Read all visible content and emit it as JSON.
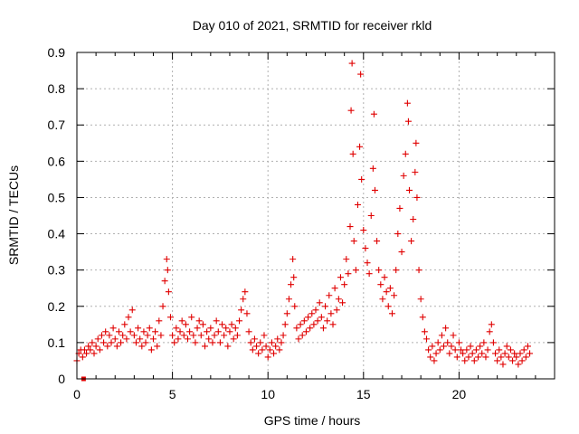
{
  "chart_data": {
    "type": "scatter",
    "title": "Day 010 of 2021, SRMTID for receiver rkld",
    "xlabel": "GPS time / hours",
    "ylabel": "SRMTID / TECUs",
    "xlim": [
      0,
      25
    ],
    "ylim": [
      0,
      0.9
    ],
    "xticks": [
      0,
      5,
      10,
      15,
      20
    ],
    "xtick_labels": [
      "0",
      "5",
      "10",
      "15",
      "20"
    ],
    "yticks": [
      0,
      0.1,
      0.2,
      0.3,
      0.4,
      0.5,
      0.6,
      0.7,
      0.8,
      0.9
    ],
    "ytick_labels": [
      "0",
      "0.1",
      "0.2",
      "0.3",
      "0.4",
      "0.5",
      "0.6",
      "0.7",
      "0.8",
      "0.9"
    ],
    "grid": true,
    "marker": "plus",
    "color": "#e00000",
    "series": [
      {
        "name": "SRMTID",
        "points": [
          [
            0.0,
            0.05
          ],
          [
            0.1,
            0.07
          ],
          [
            0.2,
            0.08
          ],
          [
            0.3,
            0.06
          ],
          [
            0.4,
            0.08
          ],
          [
            0.5,
            0.07
          ],
          [
            0.6,
            0.09
          ],
          [
            0.7,
            0.08
          ],
          [
            0.8,
            0.1
          ],
          [
            0.9,
            0.07
          ],
          [
            1.0,
            0.09
          ],
          [
            1.1,
            0.11
          ],
          [
            1.2,
            0.08
          ],
          [
            1.3,
            0.12
          ],
          [
            1.4,
            0.1
          ],
          [
            1.5,
            0.13
          ],
          [
            1.6,
            0.09
          ],
          [
            1.7,
            0.12
          ],
          [
            1.8,
            0.1
          ],
          [
            1.9,
            0.14
          ],
          [
            2.0,
            0.11
          ],
          [
            2.1,
            0.09
          ],
          [
            2.2,
            0.13
          ],
          [
            2.3,
            0.1
          ],
          [
            2.4,
            0.12
          ],
          [
            2.5,
            0.15
          ],
          [
            2.6,
            0.11
          ],
          [
            2.7,
            0.17
          ],
          [
            2.8,
            0.13
          ],
          [
            2.9,
            0.19
          ],
          [
            3.0,
            0.12
          ],
          [
            3.1,
            0.1
          ],
          [
            3.2,
            0.14
          ],
          [
            3.3,
            0.11
          ],
          [
            3.4,
            0.09
          ],
          [
            3.5,
            0.13
          ],
          [
            3.6,
            0.1
          ],
          [
            3.7,
            0.12
          ],
          [
            3.8,
            0.14
          ],
          [
            3.9,
            0.08
          ],
          [
            4.0,
            0.11
          ],
          [
            4.1,
            0.13
          ],
          [
            4.2,
            0.09
          ],
          [
            4.3,
            0.16
          ],
          [
            4.4,
            0.12
          ],
          [
            4.5,
            0.2
          ],
          [
            4.6,
            0.27
          ],
          [
            4.7,
            0.33
          ],
          [
            4.75,
            0.3
          ],
          [
            4.8,
            0.24
          ],
          [
            4.9,
            0.17
          ],
          [
            5.0,
            0.12
          ],
          [
            5.1,
            0.1
          ],
          [
            5.2,
            0.14
          ],
          [
            5.3,
            0.11
          ],
          [
            5.4,
            0.13
          ],
          [
            5.5,
            0.16
          ],
          [
            5.6,
            0.12
          ],
          [
            5.7,
            0.15
          ],
          [
            5.8,
            0.11
          ],
          [
            5.9,
            0.13
          ],
          [
            6.0,
            0.17
          ],
          [
            6.1,
            0.12
          ],
          [
            6.2,
            0.1
          ],
          [
            6.3,
            0.14
          ],
          [
            6.4,
            0.16
          ],
          [
            6.5,
            0.12
          ],
          [
            6.6,
            0.15
          ],
          [
            6.7,
            0.09
          ],
          [
            6.8,
            0.13
          ],
          [
            6.9,
            0.11
          ],
          [
            7.0,
            0.14
          ],
          [
            7.1,
            0.1
          ],
          [
            7.2,
            0.12
          ],
          [
            7.3,
            0.16
          ],
          [
            7.4,
            0.13
          ],
          [
            7.5,
            0.1
          ],
          [
            7.6,
            0.15
          ],
          [
            7.7,
            0.12
          ],
          [
            7.8,
            0.14
          ],
          [
            7.9,
            0.09
          ],
          [
            8.0,
            0.13
          ],
          [
            8.1,
            0.15
          ],
          [
            8.2,
            0.11
          ],
          [
            8.3,
            0.14
          ],
          [
            8.4,
            0.12
          ],
          [
            8.5,
            0.16
          ],
          [
            8.6,
            0.19
          ],
          [
            8.7,
            0.22
          ],
          [
            8.8,
            0.24
          ],
          [
            8.9,
            0.18
          ],
          [
            9.0,
            0.13
          ],
          [
            9.1,
            0.1
          ],
          [
            9.2,
            0.08
          ],
          [
            9.3,
            0.11
          ],
          [
            9.4,
            0.09
          ],
          [
            9.5,
            0.07
          ],
          [
            9.6,
            0.1
          ],
          [
            9.7,
            0.08
          ],
          [
            9.8,
            0.12
          ],
          [
            9.9,
            0.09
          ],
          [
            10.0,
            0.06
          ],
          [
            10.1,
            0.08
          ],
          [
            10.2,
            0.1
          ],
          [
            10.3,
            0.07
          ],
          [
            10.4,
            0.09
          ],
          [
            10.5,
            0.11
          ],
          [
            10.6,
            0.08
          ],
          [
            10.7,
            0.1
          ],
          [
            10.8,
            0.12
          ],
          [
            10.9,
            0.15
          ],
          [
            11.0,
            0.18
          ],
          [
            11.1,
            0.22
          ],
          [
            11.2,
            0.26
          ],
          [
            11.3,
            0.33
          ],
          [
            11.35,
            0.28
          ],
          [
            11.4,
            0.2
          ],
          [
            11.5,
            0.14
          ],
          [
            11.6,
            0.11
          ],
          [
            11.7,
            0.15
          ],
          [
            11.8,
            0.12
          ],
          [
            11.9,
            0.16
          ],
          [
            12.0,
            0.13
          ],
          [
            12.1,
            0.17
          ],
          [
            12.2,
            0.14
          ],
          [
            12.3,
            0.18
          ],
          [
            12.4,
            0.15
          ],
          [
            12.5,
            0.19
          ],
          [
            12.6,
            0.16
          ],
          [
            12.7,
            0.21
          ],
          [
            12.8,
            0.17
          ],
          [
            12.9,
            0.14
          ],
          [
            13.0,
            0.2
          ],
          [
            13.1,
            0.16
          ],
          [
            13.2,
            0.23
          ],
          [
            13.3,
            0.18
          ],
          [
            13.4,
            0.15
          ],
          [
            13.5,
            0.25
          ],
          [
            13.6,
            0.19
          ],
          [
            13.7,
            0.22
          ],
          [
            13.8,
            0.28
          ],
          [
            13.9,
            0.21
          ],
          [
            14.0,
            0.26
          ],
          [
            14.1,
            0.33
          ],
          [
            14.2,
            0.29
          ],
          [
            14.3,
            0.42
          ],
          [
            14.35,
            0.74
          ],
          [
            14.4,
            0.87
          ],
          [
            14.45,
            0.62
          ],
          [
            14.5,
            0.38
          ],
          [
            14.6,
            0.3
          ],
          [
            14.7,
            0.48
          ],
          [
            14.8,
            0.64
          ],
          [
            14.85,
            0.84
          ],
          [
            14.9,
            0.55
          ],
          [
            15.0,
            0.41
          ],
          [
            15.1,
            0.36
          ],
          [
            15.2,
            0.32
          ],
          [
            15.3,
            0.29
          ],
          [
            15.4,
            0.45
          ],
          [
            15.5,
            0.58
          ],
          [
            15.55,
            0.73
          ],
          [
            15.6,
            0.52
          ],
          [
            15.7,
            0.38
          ],
          [
            15.8,
            0.3
          ],
          [
            15.9,
            0.26
          ],
          [
            16.0,
            0.22
          ],
          [
            16.1,
            0.28
          ],
          [
            16.2,
            0.24
          ],
          [
            16.3,
            0.2
          ],
          [
            16.4,
            0.25
          ],
          [
            16.5,
            0.18
          ],
          [
            16.6,
            0.23
          ],
          [
            16.7,
            0.3
          ],
          [
            16.8,
            0.4
          ],
          [
            16.9,
            0.47
          ],
          [
            17.0,
            0.35
          ],
          [
            17.1,
            0.56
          ],
          [
            17.2,
            0.62
          ],
          [
            17.3,
            0.76
          ],
          [
            17.35,
            0.71
          ],
          [
            17.4,
            0.52
          ],
          [
            17.5,
            0.38
          ],
          [
            17.6,
            0.44
          ],
          [
            17.7,
            0.57
          ],
          [
            17.75,
            0.65
          ],
          [
            17.8,
            0.5
          ],
          [
            17.9,
            0.3
          ],
          [
            18.0,
            0.22
          ],
          [
            18.1,
            0.17
          ],
          [
            18.2,
            0.13
          ],
          [
            18.3,
            0.11
          ],
          [
            18.4,
            0.08
          ],
          [
            18.5,
            0.06
          ],
          [
            18.6,
            0.09
          ],
          [
            18.7,
            0.05
          ],
          [
            18.8,
            0.07
          ],
          [
            18.9,
            0.1
          ],
          [
            19.0,
            0.08
          ],
          [
            19.1,
            0.12
          ],
          [
            19.2,
            0.09
          ],
          [
            19.3,
            0.14
          ],
          [
            19.4,
            0.1
          ],
          [
            19.5,
            0.07
          ],
          [
            19.6,
            0.09
          ],
          [
            19.7,
            0.12
          ],
          [
            19.8,
            0.08
          ],
          [
            19.9,
            0.06
          ],
          [
            20.0,
            0.1
          ],
          [
            20.1,
            0.08
          ],
          [
            20.2,
            0.07
          ],
          [
            20.3,
            0.05
          ],
          [
            20.4,
            0.08
          ],
          [
            20.5,
            0.06
          ],
          [
            20.6,
            0.09
          ],
          [
            20.7,
            0.07
          ],
          [
            20.8,
            0.05
          ],
          [
            20.9,
            0.08
          ],
          [
            21.0,
            0.06
          ],
          [
            21.1,
            0.09
          ],
          [
            21.2,
            0.07
          ],
          [
            21.3,
            0.1
          ],
          [
            21.4,
            0.06
          ],
          [
            21.5,
            0.08
          ],
          [
            21.6,
            0.13
          ],
          [
            21.7,
            0.15
          ],
          [
            21.8,
            0.1
          ],
          [
            21.9,
            0.07
          ],
          [
            22.0,
            0.05
          ],
          [
            22.1,
            0.08
          ],
          [
            22.2,
            0.06
          ],
          [
            22.3,
            0.04
          ],
          [
            22.4,
            0.07
          ],
          [
            22.5,
            0.09
          ],
          [
            22.6,
            0.06
          ],
          [
            22.7,
            0.08
          ],
          [
            22.8,
            0.05
          ],
          [
            22.9,
            0.07
          ],
          [
            23.0,
            0.06
          ],
          [
            23.1,
            0.04
          ],
          [
            23.2,
            0.07
          ],
          [
            23.3,
            0.05
          ],
          [
            23.4,
            0.08
          ],
          [
            23.5,
            0.06
          ],
          [
            23.6,
            0.09
          ],
          [
            23.7,
            0.07
          ]
        ]
      }
    ],
    "outlier_marker": {
      "x": 0.35,
      "y": 0.0,
      "shape": "square"
    }
  }
}
